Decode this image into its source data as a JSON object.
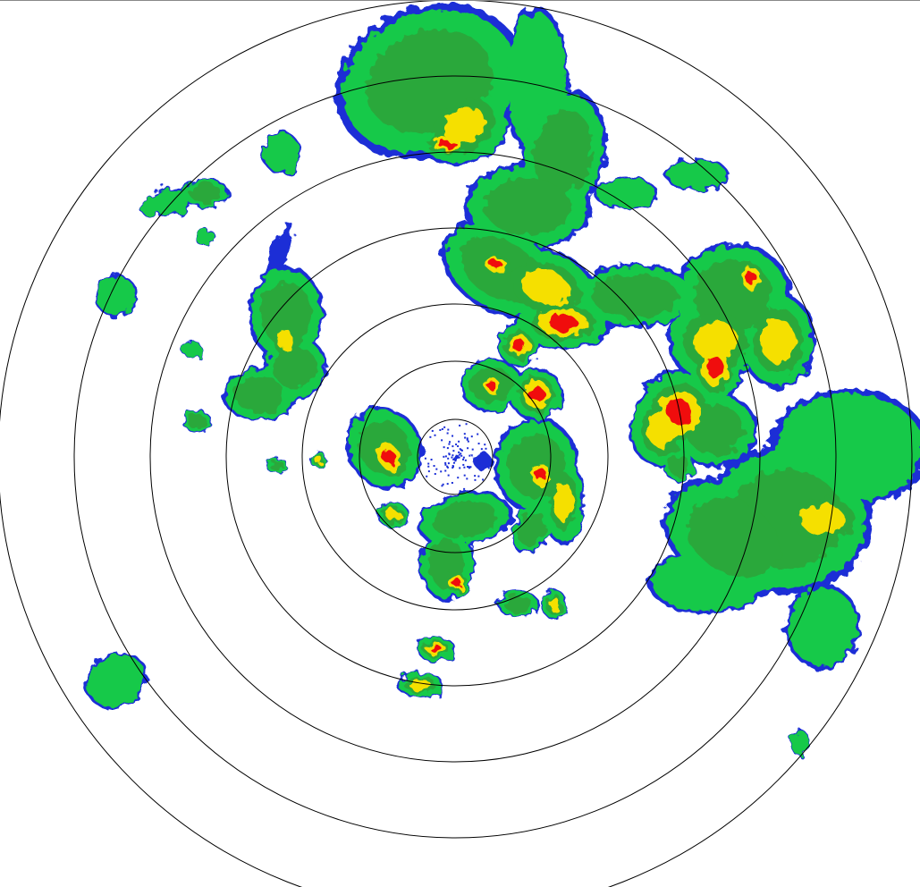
{
  "radar": {
    "type": "reflectivity-ppi",
    "range_rings": 7,
    "colors": {
      "ring": "#000000",
      "weak": "#1a2ed6",
      "light": "#15c94a",
      "moderate": "#2aa83a",
      "heavy": "#f5e000",
      "intense": "#f01010",
      "background": "#ffffff"
    }
  }
}
